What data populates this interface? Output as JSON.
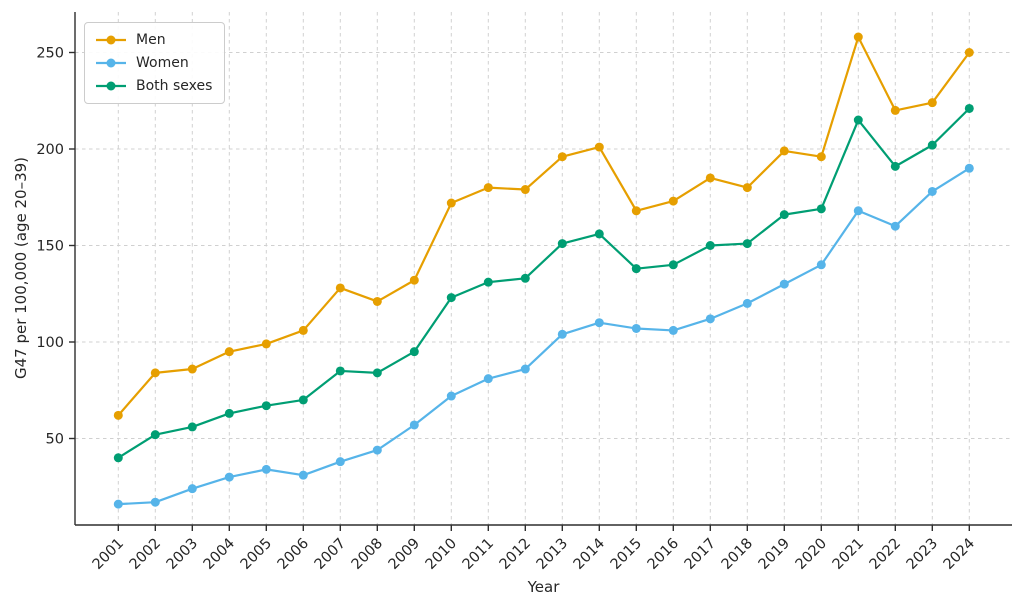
{
  "chart_data": {
    "type": "line",
    "title": "",
    "xlabel": "Year",
    "ylabel": "G47 per 100,000 (age 20–39)",
    "x": [
      2001,
      2002,
      2003,
      2004,
      2005,
      2006,
      2007,
      2008,
      2009,
      2010,
      2011,
      2012,
      2013,
      2014,
      2015,
      2016,
      2017,
      2018,
      2019,
      2020,
      2021,
      2022,
      2023,
      2024
    ],
    "series": [
      {
        "name": "Men",
        "color": "#E69F00",
        "values": [
          62,
          84,
          86,
          95,
          99,
          106,
          128,
          121,
          132,
          172,
          180,
          179,
          196,
          201,
          168,
          173,
          185,
          180,
          199,
          196,
          258,
          220,
          224,
          250
        ]
      },
      {
        "name": "Women",
        "color": "#56B4E9",
        "values": [
          16,
          17,
          24,
          30,
          34,
          31,
          38,
          44,
          57,
          72,
          81,
          86,
          104,
          110,
          107,
          106,
          112,
          120,
          130,
          140,
          168,
          160,
          178,
          190
        ]
      },
      {
        "name": "Both sexes",
        "color": "#009E73",
        "values": [
          40,
          52,
          56,
          63,
          67,
          70,
          85,
          84,
          95,
          123,
          131,
          133,
          151,
          156,
          138,
          140,
          150,
          151,
          166,
          169,
          215,
          191,
          202,
          221
        ]
      }
    ],
    "yticks": [
      50,
      100,
      150,
      200,
      250
    ],
    "ylim": [
      5,
      271
    ],
    "grid": true,
    "grid_style": "dashed",
    "legend_position": "upper left",
    "marker": "circle",
    "xticklabel_rotation": 45
  },
  "colors": {
    "background": "#ffffff",
    "grid": "#d0d0d0",
    "spine": "#2e2e2e",
    "text": "#262626"
  }
}
